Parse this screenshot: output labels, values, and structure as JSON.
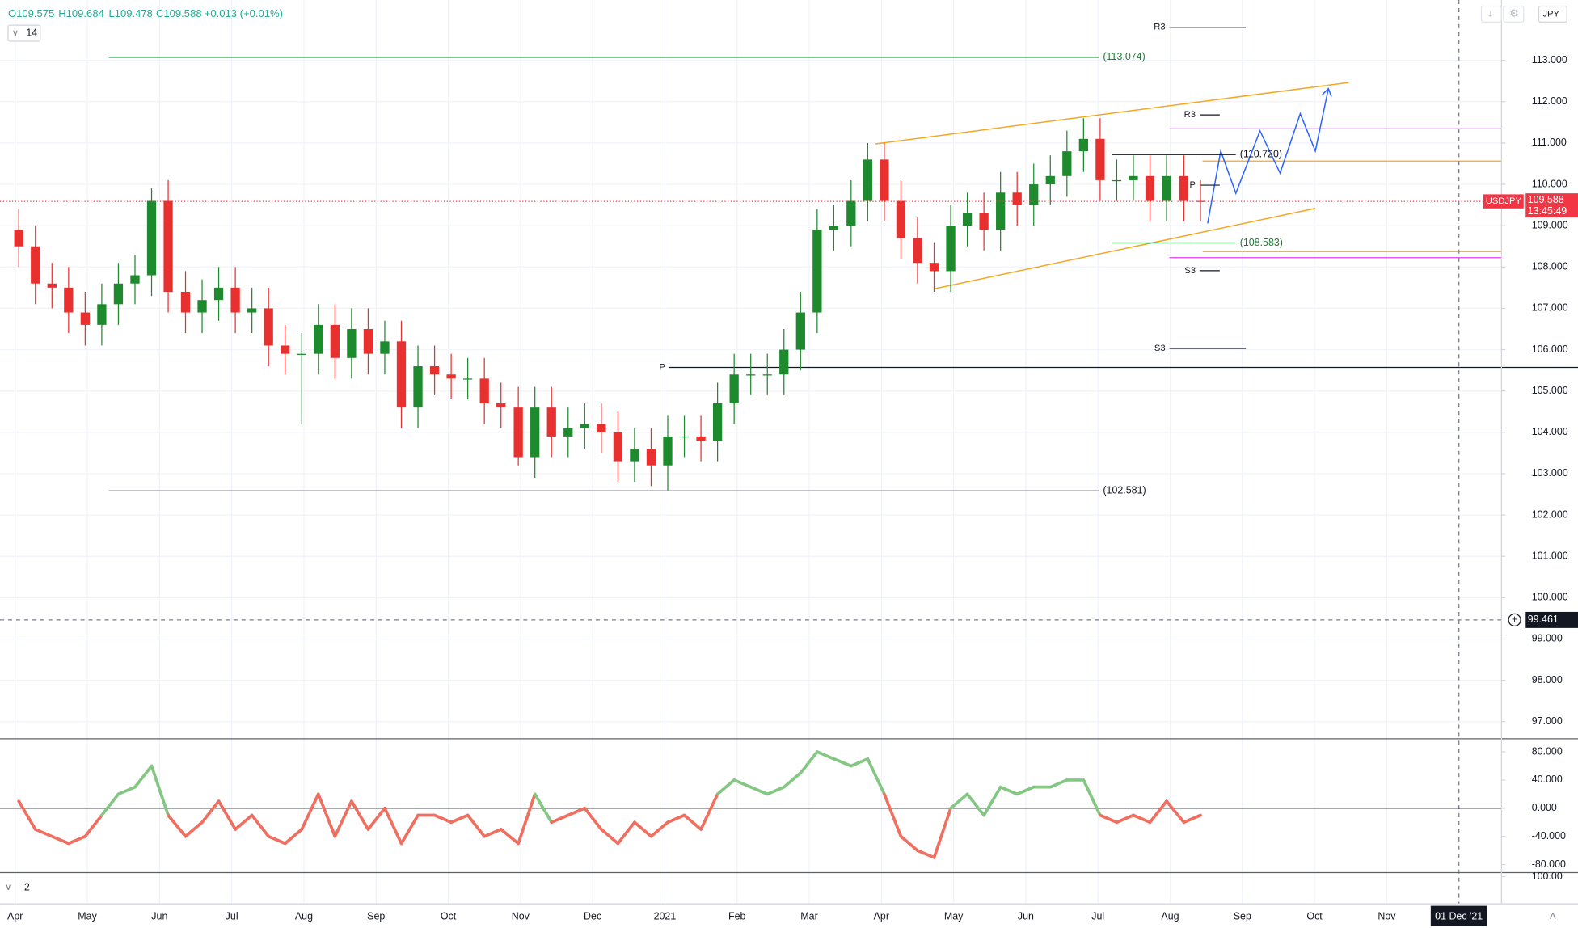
{
  "header": {
    "open": "O109.575",
    "high": "H109.684",
    "low": "L109.478",
    "close": "C109.588",
    "change": "+0.013 (+0.01%)",
    "indicator_length": "14",
    "currency": "JPY",
    "symbol": "USDJPY",
    "countdown": "13:45:49",
    "pane3_label": "2"
  },
  "chart_data": [
    {
      "type": "candlestick",
      "x": [
        0.05,
        0.28,
        0.51,
        0.74,
        0.97,
        1.2,
        1.43,
        1.66,
        1.89,
        2.12,
        2.36,
        2.59,
        2.82,
        3.05,
        3.28,
        3.51,
        3.74,
        3.97,
        4.2,
        4.43,
        4.66,
        4.89,
        5.12,
        5.35,
        5.58,
        5.81,
        6.04,
        6.27,
        6.5,
        6.73,
        6.97,
        7.2,
        7.43,
        7.66,
        7.89,
        8.12,
        8.35,
        8.58,
        8.81,
        9.04,
        9.27,
        9.5,
        9.73,
        9.96,
        10.19,
        10.42,
        10.65,
        10.88,
        11.11,
        11.34,
        11.58,
        11.81,
        12.04,
        12.27,
        12.5,
        12.73,
        12.96,
        13.19,
        13.42,
        13.65,
        13.88,
        14.11,
        14.34,
        14.57,
        14.8,
        15.03,
        15.26,
        15.49,
        15.72,
        15.95,
        16.19,
        16.42
      ],
      "open": [
        108.9,
        108.5,
        107.6,
        107.5,
        106.9,
        106.6,
        107.1,
        107.6,
        107.8,
        109.6,
        107.4,
        106.9,
        107.2,
        107.5,
        106.9,
        107.0,
        106.1,
        105.9,
        105.9,
        106.6,
        105.8,
        106.5,
        105.9,
        106.2,
        104.6,
        105.6,
        105.4,
        105.3,
        105.3,
        104.7,
        104.6,
        103.4,
        104.6,
        103.9,
        104.1,
        104.2,
        104.0,
        103.3,
        103.6,
        103.2,
        103.9,
        103.9,
        103.8,
        104.7,
        105.4,
        105.4,
        105.4,
        106.0,
        106.9,
        108.9,
        109.0,
        109.6,
        110.6,
        109.6,
        108.7,
        108.1,
        107.9,
        109.0,
        109.3,
        108.9,
        109.8,
        109.5,
        110.0,
        110.2,
        110.8,
        111.1,
        110.1,
        110.1,
        110.2,
        109.6,
        110.2,
        109.6
      ],
      "high": [
        109.4,
        109.0,
        108.1,
        108.0,
        107.4,
        107.6,
        108.1,
        108.3,
        109.9,
        110.1,
        107.9,
        107.7,
        108.0,
        108.0,
        107.5,
        107.5,
        106.6,
        106.4,
        107.1,
        107.1,
        107.0,
        107.0,
        106.7,
        106.7,
        106.1,
        106.1,
        105.9,
        105.8,
        105.8,
        105.2,
        105.1,
        105.1,
        105.1,
        104.6,
        104.7,
        104.7,
        104.5,
        104.1,
        104.1,
        104.4,
        104.4,
        104.4,
        105.2,
        105.9,
        105.9,
        105.9,
        106.5,
        107.4,
        109.4,
        109.5,
        110.1,
        111.0,
        111.0,
        110.1,
        109.2,
        108.6,
        109.5,
        109.8,
        109.8,
        110.3,
        110.3,
        110.5,
        110.7,
        111.3,
        111.6,
        111.6,
        110.6,
        110.7,
        110.7,
        110.7,
        110.7,
        110.1
      ],
      "low": [
        108.0,
        107.1,
        107.0,
        106.4,
        106.1,
        106.1,
        106.6,
        107.1,
        107.3,
        106.9,
        106.4,
        106.4,
        106.7,
        106.4,
        106.4,
        105.6,
        105.4,
        104.2,
        105.4,
        105.3,
        105.3,
        105.4,
        105.4,
        104.1,
        104.1,
        104.9,
        104.8,
        104.8,
        104.2,
        104.1,
        103.2,
        102.9,
        103.4,
        103.4,
        103.6,
        103.5,
        102.8,
        102.8,
        102.7,
        102.6,
        103.4,
        103.3,
        103.3,
        104.2,
        104.9,
        104.9,
        104.9,
        105.5,
        106.4,
        108.4,
        108.5,
        109.1,
        109.1,
        108.2,
        107.6,
        107.4,
        107.4,
        108.5,
        108.4,
        108.4,
        109.0,
        109.0,
        109.5,
        109.7,
        110.3,
        109.6,
        109.6,
        109.6,
        109.1,
        109.1,
        109.1,
        109.1
      ],
      "close": [
        108.5,
        107.6,
        107.5,
        106.9,
        106.6,
        107.1,
        107.6,
        107.8,
        109.6,
        107.4,
        106.9,
        107.2,
        107.5,
        106.9,
        107.0,
        106.1,
        105.9,
        105.9,
        106.6,
        105.8,
        106.5,
        105.9,
        106.2,
        104.6,
        105.6,
        105.4,
        105.3,
        105.3,
        104.7,
        104.6,
        103.4,
        104.6,
        103.9,
        104.1,
        104.2,
        104.0,
        103.3,
        103.6,
        103.2,
        103.9,
        103.9,
        103.8,
        104.7,
        105.4,
        105.4,
        105.4,
        106.0,
        106.9,
        108.9,
        109.0,
        109.6,
        110.6,
        109.6,
        108.7,
        108.1,
        107.9,
        109.0,
        109.3,
        108.9,
        109.8,
        109.5,
        110.0,
        110.2,
        110.8,
        111.1,
        110.1,
        110.1,
        110.2,
        109.6,
        110.2,
        109.6,
        109.588
      ],
      "colors": {
        "up": "#1e8a2e",
        "down": "#e8312f"
      },
      "xlim": [
        -0.21,
        20.59
      ],
      "xticks": [
        {
          "value": 0,
          "label": "Apr"
        },
        {
          "value": 1,
          "label": "May"
        },
        {
          "value": 2,
          "label": "Jun"
        },
        {
          "value": 3,
          "label": "Jul"
        },
        {
          "value": 4,
          "label": "Aug"
        },
        {
          "value": 5,
          "label": "Sep"
        },
        {
          "value": 6,
          "label": "Oct"
        },
        {
          "value": 7,
          "label": "Nov"
        },
        {
          "value": 8,
          "label": "Dec"
        },
        {
          "value": 9,
          "label": "2021"
        },
        {
          "value": 10,
          "label": "Feb"
        },
        {
          "value": 11,
          "label": "Mar"
        },
        {
          "value": 12,
          "label": "Apr"
        },
        {
          "value": 13,
          "label": "May"
        },
        {
          "value": 14,
          "label": "Jun"
        },
        {
          "value": 15,
          "label": "Jul"
        },
        {
          "value": 16,
          "label": "Aug"
        },
        {
          "value": 17,
          "label": "Sep"
        },
        {
          "value": 18,
          "label": "Oct"
        },
        {
          "value": 19,
          "label": "Nov"
        }
      ],
      "ylim": [
        96.61,
        114.46
      ],
      "yticks": [
        {
          "value": 97,
          "label": "97.000"
        },
        {
          "value": 98,
          "label": "98.000"
        },
        {
          "value": 99,
          "label": "99.000"
        },
        {
          "value": 100,
          "label": "100.000"
        },
        {
          "value": 101,
          "label": "101.000"
        },
        {
          "value": 102,
          "label": "102.000"
        },
        {
          "value": 103,
          "label": "103.000"
        },
        {
          "value": 104,
          "label": "104.000"
        },
        {
          "value": 105,
          "label": "105.000"
        },
        {
          "value": 106,
          "label": "106.000"
        },
        {
          "value": 107,
          "label": "107.000"
        },
        {
          "value": 108,
          "label": "108.000"
        },
        {
          "value": 109,
          "label": "109.000"
        },
        {
          "value": 110,
          "label": "110.000"
        },
        {
          "value": 111,
          "label": "111.000"
        },
        {
          "value": 112,
          "label": "112.000"
        },
        {
          "value": 113,
          "label": "113.000"
        }
      ],
      "grid": true,
      "levels": [
        {
          "value": 113.074,
          "label": "(113.074)",
          "color": "#1e7b34"
        },
        {
          "value": 102.581,
          "label": "(102.581)",
          "color": "#131722"
        },
        {
          "value": 110.72,
          "label": "(110.720)",
          "color": "#131722"
        },
        {
          "value": 108.583,
          "label": "(108.583)",
          "color": "#1e7b34"
        }
      ],
      "pivots": [
        {
          "value": 113.8,
          "label": "R3"
        },
        {
          "value": 106.03,
          "label": "S3"
        },
        {
          "value": 105.57,
          "label": "P"
        },
        {
          "value": 111.68,
          "label": "R3"
        },
        {
          "value": 109.98,
          "label": "P"
        },
        {
          "value": 107.91,
          "label": "S3"
        }
      ],
      "last_price": 109.588,
      "last_color": "#f23645",
      "crosshair": {
        "value": 99.461,
        "x": 20,
        "x_label": "01 Dec '21"
      }
    },
    {
      "type": "line",
      "values": [
        10,
        -30,
        -40,
        -50,
        -40,
        -10,
        20,
        30,
        60,
        -10,
        -40,
        -20,
        10,
        -30,
        -10,
        -40,
        -50,
        -30,
        20,
        -40,
        10,
        -30,
        0,
        -50,
        -10,
        -10,
        -20,
        -10,
        -40,
        -30,
        -50,
        20,
        -20,
        -10,
        0,
        -30,
        -50,
        -20,
        -40,
        -20,
        -10,
        -30,
        20,
        40,
        30,
        20,
        30,
        50,
        80,
        70,
        60,
        70,
        20,
        -40,
        -60,
        -70,
        0,
        20,
        -10,
        30,
        20,
        30,
        30,
        40,
        40,
        -10,
        -20,
        -10,
        -20,
        10,
        -20,
        -10
      ],
      "colors": {
        "positive": "#84c783",
        "negative": "#ef6f61"
      },
      "ylim": [
        -90,
        97.1
      ],
      "yticks": [
        {
          "value": 80,
          "label": "80.000"
        },
        {
          "value": 40,
          "label": "40.000"
        },
        {
          "value": 0,
          "label": "0.000"
        },
        {
          "value": -40,
          "label": "-40.000"
        },
        {
          "value": -80,
          "label": "-80.000"
        }
      ]
    },
    {
      "type": "line",
      "ylim": [
        -12.5,
        112.5
      ],
      "yticks": [
        {
          "value": 100,
          "label": "100.00"
        }
      ]
    }
  ]
}
